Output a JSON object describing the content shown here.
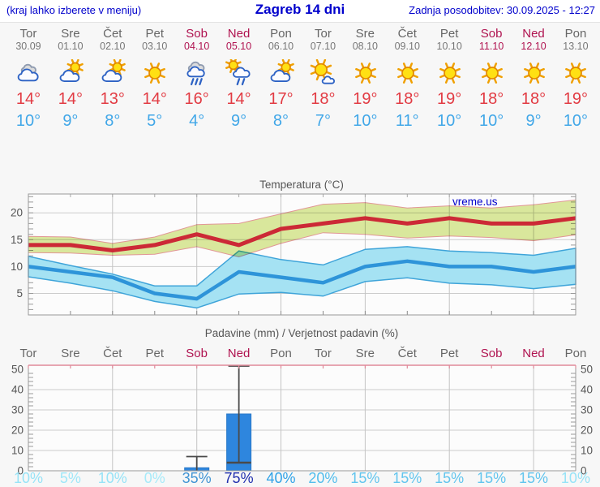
{
  "header": {
    "left_note": "(kraj lahko izberete v meniju)",
    "title": "Zagreb 14 dni",
    "updated": "Zadnja posodobitev: 30.09.2025 - 12:27"
  },
  "colors": {
    "link_blue": "#0000cc",
    "weekday": "#666666",
    "weekend": "#b01350",
    "tmax_text": "#e23b43",
    "tmin_text": "#41a7e8",
    "axis_text": "#555555",
    "gridline": "#cccccc",
    "plot_border": "#999999",
    "plot_bg": "#fcfcfc",
    "max_band_fill": "#dcea9e",
    "max_band_stroke": "#e49898",
    "min_band_fill": "#a5e2f3",
    "min_band_stroke": "#3fa4d9",
    "max_line": "#cc2936",
    "min_line": "#2e94d9",
    "bar_fill": "#2e86de",
    "bar_stroke": "#2a79c8",
    "whisker": "#4a4a4a",
    "precip_top_axis": "#e08a9a",
    "prob": {
      "0": "#a6eaf9",
      "5": "#9fe7f8",
      "10": "#97e3f7",
      "15": "#62c5ee",
      "20": "#52bdec",
      "35": "#4094d4",
      "40": "#2ea2e7",
      "75": "#202fae"
    }
  },
  "forecast": {
    "days": [
      {
        "name": "Tor",
        "date": "30.09",
        "weekend": false,
        "icon": "cloudy",
        "tmax": "14°",
        "tmin": "10°",
        "prob": "10%"
      },
      {
        "name": "Sre",
        "date": "01.10",
        "weekend": false,
        "icon": "partly",
        "tmax": "14°",
        "tmin": "9°",
        "prob": "5%"
      },
      {
        "name": "Čet",
        "date": "02.10",
        "weekend": false,
        "icon": "partly",
        "tmax": "13°",
        "tmin": "8°",
        "prob": "10%"
      },
      {
        "name": "Pet",
        "date": "03.10",
        "weekend": false,
        "icon": "sunny",
        "tmax": "14°",
        "tmin": "5°",
        "prob": "0%"
      },
      {
        "name": "Sob",
        "date": "04.10",
        "weekend": true,
        "icon": "rain",
        "tmax": "16°",
        "tmin": "4°",
        "prob": "35%"
      },
      {
        "name": "Ned",
        "date": "05.10",
        "weekend": true,
        "icon": "sun-rain",
        "tmax": "14°",
        "tmin": "9°",
        "prob": "75%"
      },
      {
        "name": "Pon",
        "date": "06.10",
        "weekend": false,
        "icon": "partly",
        "tmax": "17°",
        "tmin": "8°",
        "prob": "40%"
      },
      {
        "name": "Tor",
        "date": "07.10",
        "weekend": false,
        "icon": "mostly-sunny",
        "tmax": "18°",
        "tmin": "7°",
        "prob": "20%"
      },
      {
        "name": "Sre",
        "date": "08.10",
        "weekend": false,
        "icon": "sunny",
        "tmax": "19°",
        "tmin": "10°",
        "prob": "15%"
      },
      {
        "name": "Čet",
        "date": "09.10",
        "weekend": false,
        "icon": "sunny",
        "tmax": "18°",
        "tmin": "11°",
        "prob": "15%"
      },
      {
        "name": "Pet",
        "date": "10.10",
        "weekend": false,
        "icon": "sunny",
        "tmax": "19°",
        "tmin": "10°",
        "prob": "15%"
      },
      {
        "name": "Sob",
        "date": "11.10",
        "weekend": true,
        "icon": "sunny",
        "tmax": "18°",
        "tmin": "10°",
        "prob": "15%"
      },
      {
        "name": "Ned",
        "date": "12.10",
        "weekend": true,
        "icon": "sunny",
        "tmax": "18°",
        "tmin": "9°",
        "prob": "15%"
      },
      {
        "name": "Pon",
        "date": "13.10",
        "weekend": false,
        "icon": "sunny",
        "tmax": "19°",
        "tmin": "10°",
        "prob": "10%"
      }
    ]
  },
  "chart_data": [
    {
      "type": "line",
      "title": "Temperatura (°C)",
      "watermark": "vreme.us",
      "x_labels": [
        "Tor 30.09",
        "Sre 01.10",
        "Čet 02.10",
        "Pet 03.10",
        "Sob 04.10",
        "Ned 05.10",
        "Pon 06.10",
        "Tor 07.10",
        "Sre 08.10",
        "Čet 09.10",
        "Pet 10.10",
        "Sob 11.10",
        "Ned 12.10",
        "Pon 13.10"
      ],
      "ylim": [
        1,
        23.5
      ],
      "yticks": [
        5,
        10,
        15,
        20
      ],
      "grid": true,
      "series": [
        {
          "name": "max-temp",
          "values": [
            14,
            14,
            13,
            14,
            16,
            14,
            17,
            18,
            19,
            18,
            19,
            18,
            18,
            19
          ]
        },
        {
          "name": "max-temp-range-high",
          "values": [
            15.6,
            15.5,
            14.3,
            15.5,
            17.8,
            18,
            19.8,
            21.6,
            21.9,
            20.9,
            21.3,
            20.9,
            21.5,
            22.4
          ]
        },
        {
          "name": "max-temp-range-low",
          "values": [
            12.6,
            12.5,
            12.1,
            12.3,
            13.7,
            11.8,
            14.3,
            16.3,
            16,
            15.3,
            15.7,
            15.4,
            14.8,
            15.9
          ]
        },
        {
          "name": "min-temp",
          "values": [
            10,
            9,
            8,
            5,
            4,
            9,
            8,
            7,
            10,
            11,
            10,
            10,
            9,
            10
          ]
        },
        {
          "name": "min-temp-range-high",
          "values": [
            11.9,
            10.2,
            8.6,
            6.4,
            6.4,
            12.9,
            11.3,
            10.3,
            13.2,
            13.7,
            12.9,
            12.6,
            12.1,
            13.4
          ]
        },
        {
          "name": "min-temp-range-low",
          "values": [
            8.1,
            6.9,
            5.5,
            3.5,
            2.3,
            4.9,
            5.2,
            4.5,
            7.2,
            7.9,
            6.9,
            6.6,
            5.9,
            6.7
          ]
        }
      ]
    },
    {
      "type": "bar",
      "title": "Padavine (mm) / Verjetnost padavin (%)",
      "categories": [
        "Tor",
        "Sre",
        "Čet",
        "Pet",
        "Sob",
        "Ned",
        "Pon",
        "Tor",
        "Sre",
        "Čet",
        "Pet",
        "Sob",
        "Ned",
        "Pon"
      ],
      "values_mm": [
        0,
        0,
        0,
        0,
        1.5,
        28,
        0,
        0,
        0,
        0,
        0,
        0,
        0,
        0
      ],
      "error_bars": [
        {
          "index": 4,
          "low": 0,
          "high": 7
        },
        {
          "index": 5,
          "low": 4,
          "high": 52
        }
      ],
      "probabilities_pct": [
        10,
        5,
        10,
        0,
        35,
        75,
        40,
        20,
        15,
        15,
        15,
        15,
        15,
        10
      ],
      "ylim": [
        0,
        52
      ],
      "yticks": [
        0,
        10,
        20,
        30,
        40,
        50
      ],
      "grid": true
    }
  ]
}
